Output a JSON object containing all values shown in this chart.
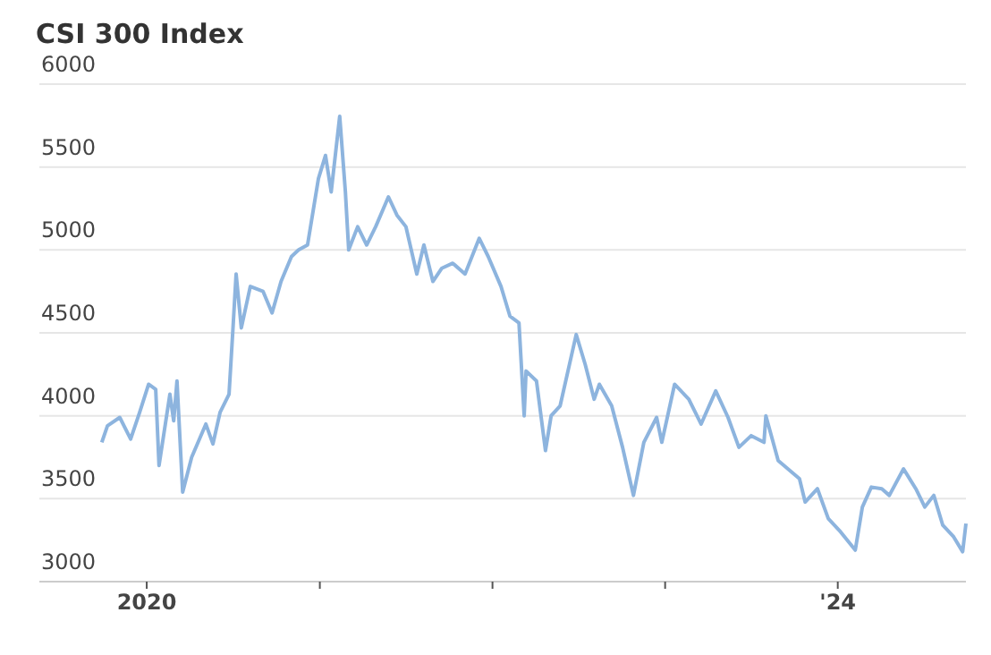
{
  "chart_data": {
    "type": "line",
    "title": "CSI 300 Index",
    "x": [
      "2019-09-28",
      "2019-10-10",
      "2019-11-05",
      "2019-11-28",
      "2019-12-17",
      "2020-01-05",
      "2020-01-20",
      "2020-01-27",
      "2020-02-19",
      "2020-02-27",
      "2020-03-05",
      "2020-03-17",
      "2020-04-05",
      "2020-05-05",
      "2020-05-20",
      "2020-06-04",
      "2020-06-23",
      "2020-07-01",
      "2020-07-08",
      "2020-07-19",
      "2020-08-07",
      "2020-09-03",
      "2020-09-22",
      "2020-10-11",
      "2020-11-02",
      "2020-11-17",
      "2020-12-06",
      "2020-12-29",
      "2021-01-13",
      "2021-01-25",
      "2021-02-12",
      "2021-02-24",
      "2021-03-03",
      "2021-03-22",
      "2021-04-10",
      "2021-04-29",
      "2021-05-26",
      "2021-06-13",
      "2021-07-02",
      "2021-07-25",
      "2021-08-09",
      "2021-08-28",
      "2021-09-16",
      "2021-10-09",
      "2021-11-04",
      "2021-12-04",
      "2021-12-23",
      "2022-01-19",
      "2022-02-07",
      "2022-02-26",
      "2022-03-09",
      "2022-03-13",
      "2022-04-04",
      "2022-04-23",
      "2022-05-05",
      "2022-05-24",
      "2022-06-27",
      "2022-07-16",
      "2022-08-04",
      "2022-08-15",
      "2022-09-10",
      "2022-10-03",
      "2022-10-26",
      "2022-11-17",
      "2022-12-14",
      "2022-12-25",
      "2023-01-21",
      "2023-02-20",
      "2023-03-18",
      "2023-04-18",
      "2023-05-14",
      "2023-06-06",
      "2023-07-02",
      "2023-07-29",
      "2023-08-02",
      "2023-08-28",
      "2023-10-12",
      "2023-10-24",
      "2023-11-19",
      "2023-12-12",
      "2024-01-07",
      "2024-02-07",
      "2024-02-22",
      "2024-03-12",
      "2024-04-03",
      "2024-04-19",
      "2024-05-19",
      "2024-06-14",
      "2024-07-03",
      "2024-07-22",
      "2024-08-10",
      "2024-09-02",
      "2024-09-21",
      "2024-09-28"
    ],
    "series": [
      {
        "color": "#8db4de",
        "values": [
          3840,
          3940,
          3990,
          3860,
          4020,
          4190,
          4160,
          3700,
          4130,
          3970,
          4210,
          3540,
          3750,
          3950,
          3830,
          4020,
          4130,
          4510,
          4855,
          4530,
          4780,
          4750,
          4620,
          4810,
          4960,
          5000,
          5030,
          5430,
          5570,
          5350,
          5806,
          5350,
          5000,
          5140,
          5030,
          5140,
          5320,
          5210,
          5140,
          4855,
          5030,
          4810,
          4890,
          4920,
          4855,
          5070,
          4960,
          4780,
          4600,
          4560,
          4000,
          4270,
          4210,
          3790,
          4000,
          4060,
          4490,
          4310,
          4100,
          4190,
          4060,
          3810,
          3520,
          3840,
          3990,
          3840,
          4190,
          4100,
          3950,
          4150,
          3990,
          3810,
          3880,
          3840,
          4000,
          3730,
          3620,
          3480,
          3560,
          3380,
          3300,
          3190,
          3450,
          3570,
          3560,
          3520,
          3680,
          3560,
          3450,
          3520,
          3340,
          3270,
          3180,
          3350
        ]
      }
    ],
    "xlim": [
      "2019-05-19",
      "2024-09-28"
    ],
    "xticks": [
      {
        "value": "2020-01-01",
        "label": "2020"
      },
      {
        "value": "2021-01-01",
        "label": null
      },
      {
        "value": "2022-01-01",
        "label": null
      },
      {
        "value": "2023-01-01",
        "label": null
      },
      {
        "value": "2024-01-01",
        "label": "'24"
      }
    ],
    "ylim": [
      3000,
      6000
    ],
    "yticks": [
      3000,
      3500,
      4000,
      4500,
      5000,
      5500,
      6000
    ],
    "grid": "y"
  }
}
